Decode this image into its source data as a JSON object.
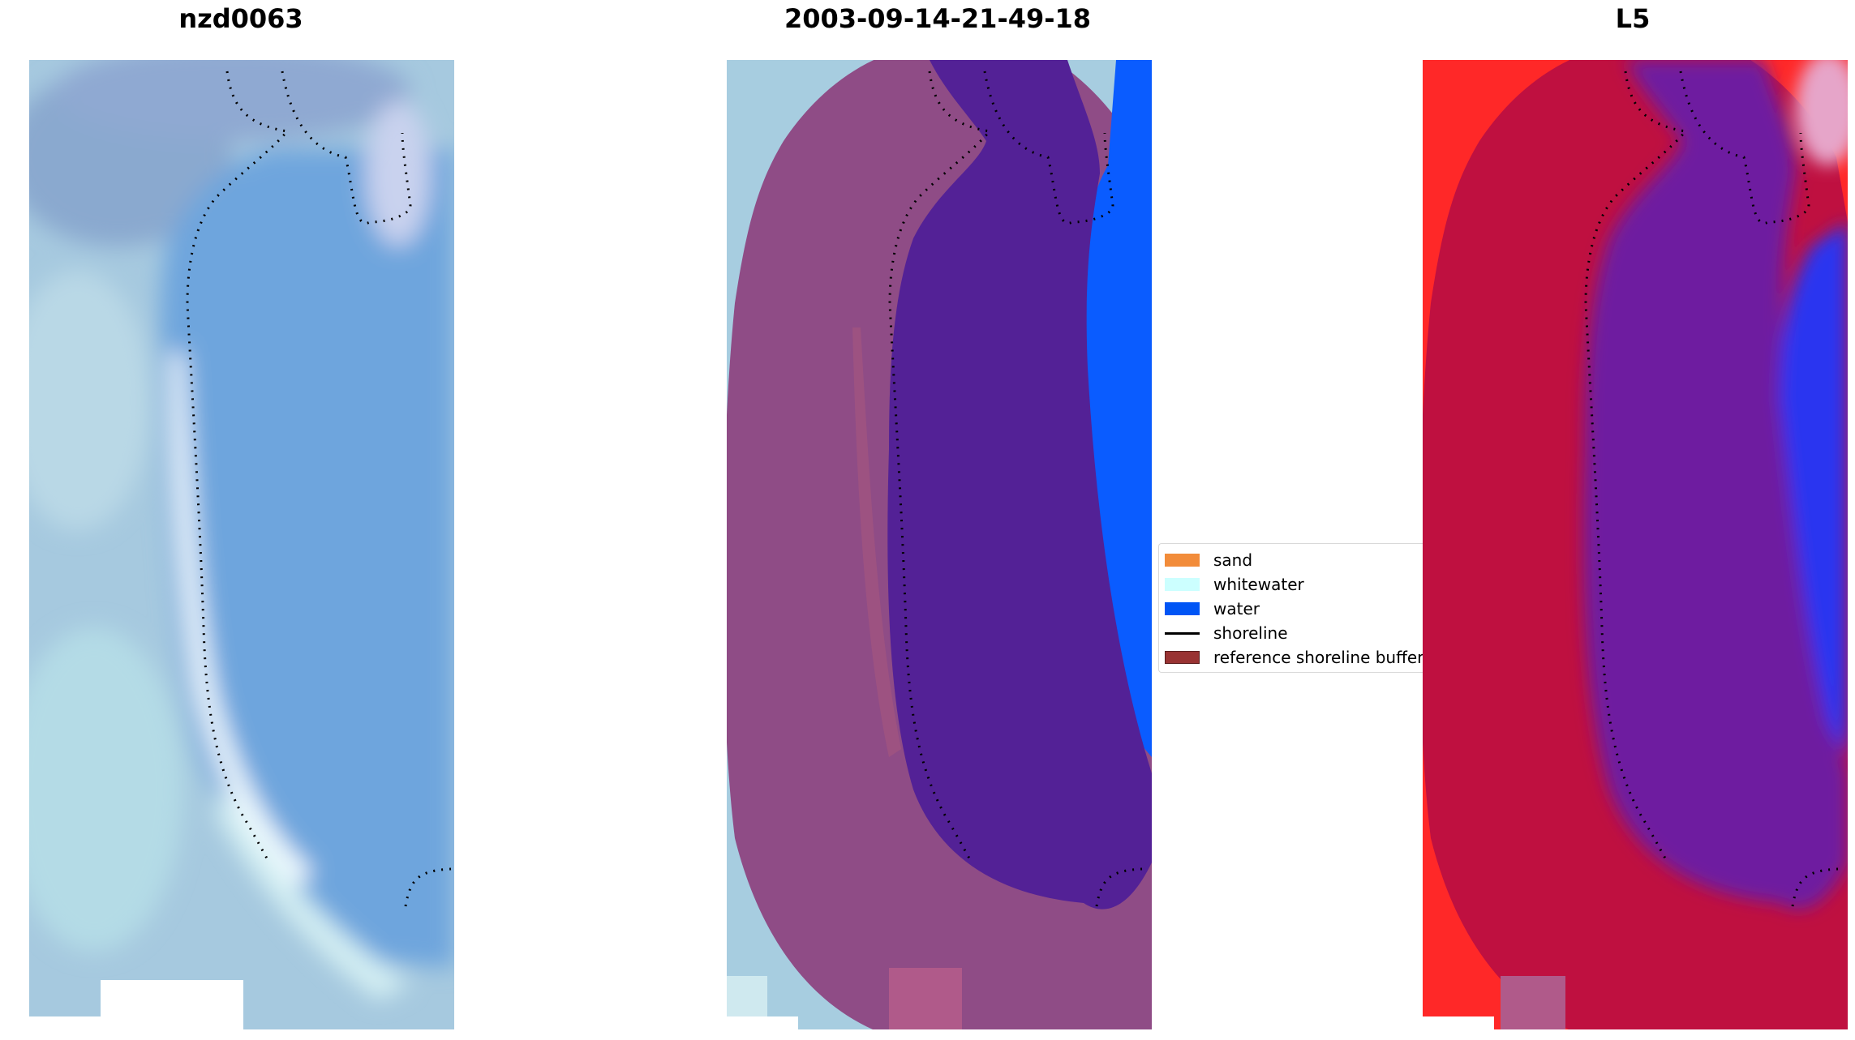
{
  "panels": [
    {
      "title": "nzd0063",
      "kind": "rgb"
    },
    {
      "title": "2003-09-14-21-49-18",
      "kind": "classified"
    },
    {
      "title": "L5",
      "kind": "index"
    }
  ],
  "legend": {
    "items": [
      {
        "label": "sand",
        "color": "#f28c3a",
        "kind": "patch"
      },
      {
        "label": "whitewater",
        "color": "#ccffff",
        "kind": "patch"
      },
      {
        "label": "water",
        "color": "#0055f5",
        "kind": "patch"
      },
      {
        "label": "shoreline",
        "color": "#000000",
        "kind": "line"
      },
      {
        "label": "reference shoreline buffer",
        "color": "#993333",
        "kind": "patch"
      }
    ]
  },
  "colors": {
    "image_blue": "#6fa6dd",
    "image_land": "#a9cfe0",
    "buffer": "#8f4a86",
    "classified_water": "#532196",
    "sea_blue": "#0a5cff",
    "index_red": "#ff2020",
    "index_crimson": "#be0f3a",
    "index_purple": "#6f1a9e",
    "index_blue": "#2233ee"
  }
}
